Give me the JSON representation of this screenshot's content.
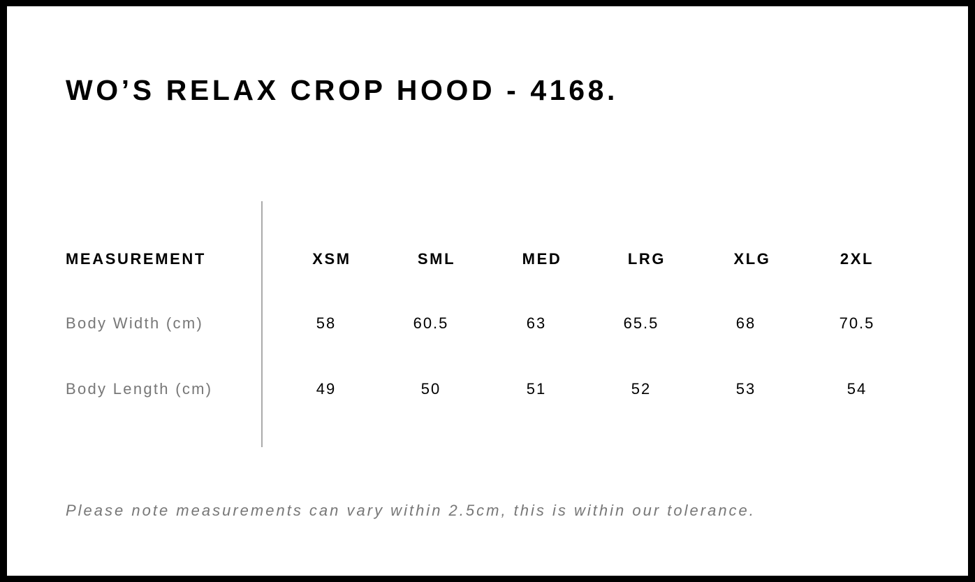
{
  "title": "WO’S RELAX CROP HOOD - 4168.",
  "table": {
    "header_label": "MEASUREMENT",
    "sizes": [
      "XSM",
      "SML",
      "MED",
      "LRG",
      "XLG",
      "2XL"
    ],
    "rows": [
      {
        "label": "Body Width (cm)",
        "values": [
          "58",
          "60.5",
          "63",
          "65.5",
          "68",
          "70.5"
        ]
      },
      {
        "label": "Body Length (cm)",
        "values": [
          "49",
          "50",
          "51",
          "52",
          "53",
          "54"
        ]
      }
    ]
  },
  "note": "Please note measurements can vary within 2.5cm, this is within our tolerance."
}
